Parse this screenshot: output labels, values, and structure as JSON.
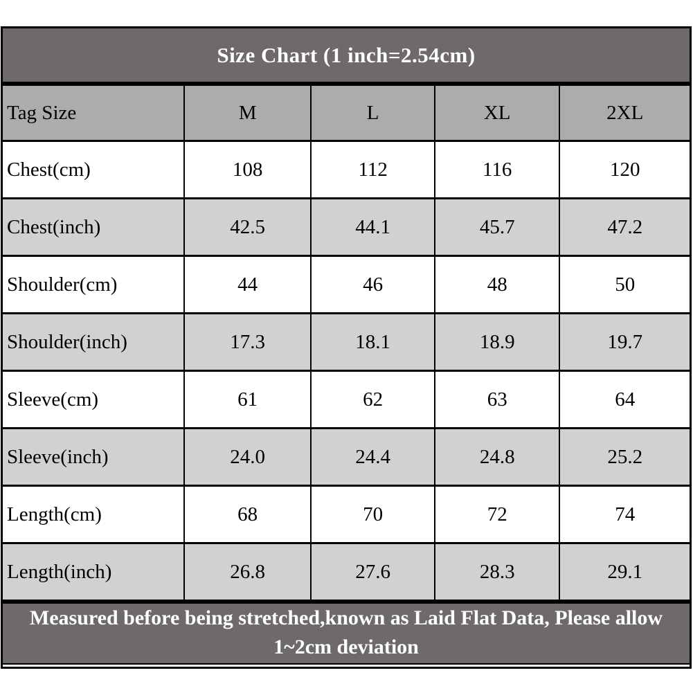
{
  "title": "Size Chart (1 inch=2.54cm)",
  "table": {
    "header": {
      "label": "Tag Size",
      "sizes": [
        "M",
        "L",
        "XL",
        "2XL"
      ]
    },
    "rows": [
      {
        "label": "Chest(cm)",
        "values": [
          "108",
          "112",
          "116",
          "120"
        ]
      },
      {
        "label": "Chest(inch)",
        "values": [
          "42.5",
          "44.1",
          "45.7",
          "47.2"
        ]
      },
      {
        "label": "Shoulder(cm)",
        "values": [
          "44",
          "46",
          "48",
          "50"
        ]
      },
      {
        "label": "Shoulder(inch)",
        "values": [
          "17.3",
          "18.1",
          "18.9",
          "19.7"
        ]
      },
      {
        "label": "Sleeve(cm)",
        "values": [
          "61",
          "62",
          "63",
          "64"
        ]
      },
      {
        "label": "Sleeve(inch)",
        "values": [
          "24.0",
          "24.4",
          "24.8",
          "25.2"
        ]
      },
      {
        "label": "Length(cm)",
        "values": [
          "68",
          "70",
          "72",
          "74"
        ]
      },
      {
        "label": "Length(inch)",
        "values": [
          "26.8",
          "27.6",
          "28.3",
          "29.1"
        ]
      }
    ]
  },
  "footer_note": "Measured before being stretched,known as Laid Flat Data, Please allow 1~2cm deviation",
  "colors": {
    "title_bg": "#6e6a6a",
    "header_bg": "#aeabab",
    "row_alt_bg": "#d3d0d0",
    "row_bg": "#ffffff",
    "border": "#000000",
    "title_text": "#ffffff",
    "cell_text": "#000000"
  },
  "chart_data": {
    "type": "table",
    "title": "Size Chart (1 inch=2.54cm)",
    "columns": [
      "Tag Size",
      "M",
      "L",
      "XL",
      "2XL"
    ],
    "rows": [
      [
        "Chest(cm)",
        108,
        112,
        116,
        120
      ],
      [
        "Chest(inch)",
        42.5,
        44.1,
        45.7,
        47.2
      ],
      [
        "Shoulder(cm)",
        44,
        46,
        48,
        50
      ],
      [
        "Shoulder(inch)",
        17.3,
        18.1,
        18.9,
        19.7
      ],
      [
        "Sleeve(cm)",
        61,
        62,
        63,
        64
      ],
      [
        "Sleeve(inch)",
        24.0,
        24.4,
        24.8,
        25.2
      ],
      [
        "Length(cm)",
        68,
        70,
        72,
        74
      ],
      [
        "Length(inch)",
        26.8,
        27.6,
        28.3,
        29.1
      ]
    ],
    "footnote": "Measured before being stretched,known as Laid Flat Data, Please allow 1~2cm deviation"
  }
}
